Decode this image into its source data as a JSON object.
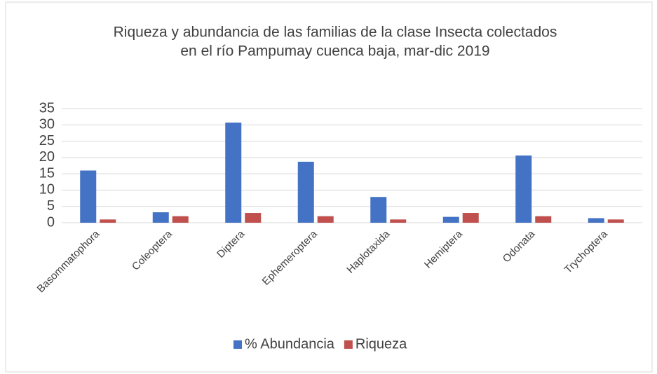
{
  "chart_data": {
    "type": "bar",
    "title": [
      "Riqueza y abundancia de las familias de la clase Insecta colectados",
      "en el río Pampumay cuenca baja, mar-dic 2019"
    ],
    "categories": [
      "Basommatophora",
      "Coleoptera",
      "Diptera",
      "Ephemeroptera",
      "Haplotaxida",
      "Hemiptera",
      "Odonata",
      "Trychoptera"
    ],
    "series": [
      {
        "name": "% Abundancia",
        "color": "#4472c4",
        "values": [
          16,
          3.2,
          30.7,
          18.7,
          7.9,
          1.8,
          20.6,
          1.4
        ]
      },
      {
        "name": "Riqueza",
        "color": "#c0504d",
        "values": [
          1,
          2,
          3,
          2,
          1,
          3,
          2,
          1
        ]
      }
    ],
    "ylim": [
      0,
      35
    ],
    "yticks": [
      0,
      5,
      10,
      15,
      20,
      25,
      30,
      35
    ],
    "grid": true,
    "legend": "bottom"
  }
}
